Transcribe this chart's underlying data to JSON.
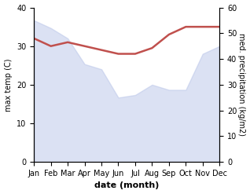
{
  "months": [
    "Jan",
    "Feb",
    "Mar",
    "Apr",
    "May",
    "Jun",
    "Jul",
    "Aug",
    "Sep",
    "Oct",
    "Nov",
    "Dec"
  ],
  "x": [
    0,
    1,
    2,
    3,
    4,
    5,
    6,
    7,
    8,
    9,
    10,
    11
  ],
  "rainfall": [
    55,
    52,
    48,
    38,
    36,
    25,
    26,
    30,
    28,
    28,
    42,
    45
  ],
  "max_temp": [
    32,
    30,
    31,
    30,
    29,
    28,
    28,
    29.5,
    33,
    35,
    35,
    35
  ],
  "fill_color": "#b8c4e8",
  "line_color": "#c0504d",
  "left_ylim": [
    0,
    40
  ],
  "right_ylim": [
    0,
    60
  ],
  "left_yticks": [
    0,
    10,
    20,
    30,
    40
  ],
  "right_yticks": [
    0,
    10,
    20,
    30,
    40,
    50,
    60
  ],
  "ylabel_left": "max temp (C)",
  "ylabel_right": "med. precipitation (kg/m2)",
  "xlabel": "date (month)",
  "bg_color": "#ffffff",
  "fill_alpha": 0.5,
  "line_width": 1.8
}
